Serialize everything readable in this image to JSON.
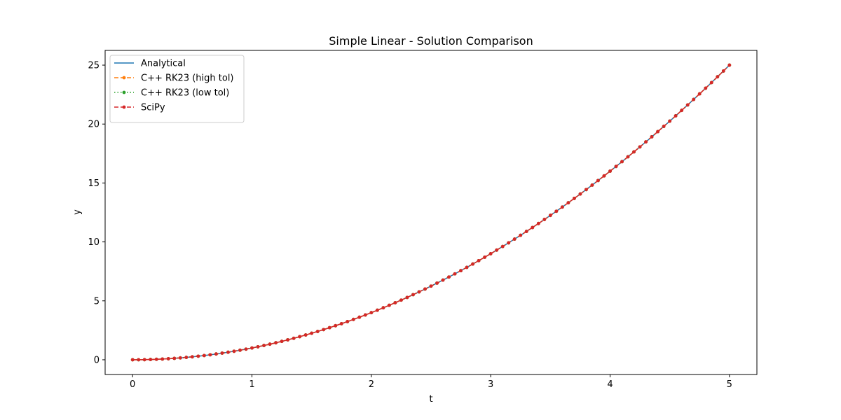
{
  "chart_data": {
    "type": "line",
    "title": "Simple Linear - Solution Comparison",
    "xlabel": "t",
    "ylabel": "y",
    "xlim": [
      -0.23,
      5.23
    ],
    "ylim": [
      -1.25,
      26.25
    ],
    "xticks": [
      0,
      1,
      2,
      3,
      4,
      5
    ],
    "yticks": [
      0,
      5,
      10,
      15,
      20,
      25
    ],
    "grid": false,
    "legend_position": "top-left",
    "function_shown": "y = t^2",
    "x": [
      0,
      0.05,
      0.1,
      0.15,
      0.2,
      0.25,
      0.3,
      0.35,
      0.4,
      0.45,
      0.5,
      0.55,
      0.6,
      0.65,
      0.7,
      0.75,
      0.8,
      0.85,
      0.9,
      0.95,
      1.0,
      1.05,
      1.1,
      1.15,
      1.2,
      1.25,
      1.3,
      1.35,
      1.4,
      1.45,
      1.5,
      1.55,
      1.6,
      1.65,
      1.7,
      1.75,
      1.8,
      1.85,
      1.9,
      1.95,
      2.0,
      2.05,
      2.1,
      2.15,
      2.2,
      2.25,
      2.3,
      2.35,
      2.4,
      2.45,
      2.5,
      2.55,
      2.6,
      2.65,
      2.7,
      2.75,
      2.8,
      2.85,
      2.9,
      2.95,
      3.0,
      3.05,
      3.1,
      3.15,
      3.2,
      3.25,
      3.3,
      3.35,
      3.4,
      3.45,
      3.5,
      3.55,
      3.6,
      3.65,
      3.7,
      3.75,
      3.8,
      3.85,
      3.9,
      3.95,
      4.0,
      4.05,
      4.1,
      4.15,
      4.2,
      4.25,
      4.3,
      4.35,
      4.4,
      4.45,
      4.5,
      4.55,
      4.6,
      4.65,
      4.7,
      4.75,
      4.8,
      4.85,
      4.9,
      4.95,
      5.0
    ],
    "series": [
      {
        "name": "Analytical",
        "color": "#1f77b4",
        "line_style": "solid",
        "marker": "none",
        "values": [
          0,
          0.0025,
          0.01,
          0.0225,
          0.04,
          0.0625,
          0.09,
          0.1225,
          0.16,
          0.2025,
          0.25,
          0.3025,
          0.36,
          0.4225,
          0.49,
          0.5625,
          0.64,
          0.7225,
          0.81,
          0.9025,
          1.0,
          1.1025,
          1.21,
          1.3225,
          1.44,
          1.5625,
          1.69,
          1.8225,
          1.96,
          2.1025,
          2.25,
          2.4025,
          2.56,
          2.7225,
          2.89,
          3.0625,
          3.24,
          3.4225,
          3.61,
          3.8025,
          4.0,
          4.2025,
          4.41,
          4.6225,
          4.84,
          5.0625,
          5.29,
          5.5225,
          5.76,
          6.0025,
          6.25,
          6.5025,
          6.76,
          7.0225,
          7.29,
          7.5625,
          7.84,
          8.1225,
          8.41,
          8.7025,
          9.0,
          9.3025,
          9.61,
          9.9225,
          10.24,
          10.5625,
          10.89,
          11.2225,
          11.56,
          11.9025,
          12.25,
          12.6025,
          12.96,
          13.3225,
          13.69,
          14.0625,
          14.44,
          14.8225,
          15.21,
          15.6025,
          16.0,
          16.4025,
          16.81,
          17.2225,
          17.64,
          18.0625,
          18.49,
          18.9225,
          19.36,
          19.8025,
          20.25,
          20.7025,
          21.16,
          21.6225,
          22.09,
          22.5625,
          23.04,
          23.5225,
          24.01,
          24.5025,
          25.0
        ]
      },
      {
        "name": "C++ RK23 (high tol)",
        "color": "#ff7f0e",
        "line_style": "dashed",
        "marker": "dot",
        "values": [
          0,
          0.0025,
          0.01,
          0.0225,
          0.04,
          0.0625,
          0.09,
          0.1225,
          0.16,
          0.2025,
          0.25,
          0.3025,
          0.36,
          0.4225,
          0.49,
          0.5625,
          0.64,
          0.7225,
          0.81,
          0.9025,
          1.0,
          1.1025,
          1.21,
          1.3225,
          1.44,
          1.5625,
          1.69,
          1.8225,
          1.96,
          2.1025,
          2.25,
          2.4025,
          2.56,
          2.7225,
          2.89,
          3.0625,
          3.24,
          3.4225,
          3.61,
          3.8025,
          4.0,
          4.2025,
          4.41,
          4.6225,
          4.84,
          5.0625,
          5.29,
          5.5225,
          5.76,
          6.0025,
          6.25,
          6.5025,
          6.76,
          7.0225,
          7.29,
          7.5625,
          7.84,
          8.1225,
          8.41,
          8.7025,
          9.0,
          9.3025,
          9.61,
          9.9225,
          10.24,
          10.5625,
          10.89,
          11.2225,
          11.56,
          11.9025,
          12.25,
          12.6025,
          12.96,
          13.3225,
          13.69,
          14.0625,
          14.44,
          14.8225,
          15.21,
          15.6025,
          16.0,
          16.4025,
          16.81,
          17.2225,
          17.64,
          18.0625,
          18.49,
          18.9225,
          19.36,
          19.8025,
          20.25,
          20.7025,
          21.16,
          21.6225,
          22.09,
          22.5625,
          23.04,
          23.5225,
          24.01,
          24.5025,
          25.0
        ]
      },
      {
        "name": "C++ RK23 (low tol)",
        "color": "#2ca02c",
        "line_style": "dotted",
        "marker": "dot",
        "values": [
          0,
          0.0025,
          0.01,
          0.0225,
          0.04,
          0.0625,
          0.09,
          0.1225,
          0.16,
          0.2025,
          0.25,
          0.3025,
          0.36,
          0.4225,
          0.49,
          0.5625,
          0.64,
          0.7225,
          0.81,
          0.9025,
          1.0,
          1.1025,
          1.21,
          1.3225,
          1.44,
          1.5625,
          1.69,
          1.8225,
          1.96,
          2.1025,
          2.25,
          2.4025,
          2.56,
          2.7225,
          2.89,
          3.0625,
          3.24,
          3.4225,
          3.61,
          3.8025,
          4.0,
          4.2025,
          4.41,
          4.6225,
          4.84,
          5.0625,
          5.29,
          5.5225,
          5.76,
          6.0025,
          6.25,
          6.5025,
          6.76,
          7.0225,
          7.29,
          7.5625,
          7.84,
          8.1225,
          8.41,
          8.7025,
          9.0,
          9.3025,
          9.61,
          9.9225,
          10.24,
          10.5625,
          10.89,
          11.2225,
          11.56,
          11.9025,
          12.25,
          12.6025,
          12.96,
          13.3225,
          13.69,
          14.0625,
          14.44,
          14.8225,
          15.21,
          15.6025,
          16.0,
          16.4025,
          16.81,
          17.2225,
          17.64,
          18.0625,
          18.49,
          18.9225,
          19.36,
          19.8025,
          20.25,
          20.7025,
          21.16,
          21.6225,
          22.09,
          22.5625,
          23.04,
          23.5225,
          24.01,
          24.5025,
          25.0
        ]
      },
      {
        "name": "SciPy",
        "color": "#d62728",
        "line_style": "dashed",
        "marker": "dot",
        "values": [
          0,
          0.0025,
          0.01,
          0.0225,
          0.04,
          0.0625,
          0.09,
          0.1225,
          0.16,
          0.2025,
          0.25,
          0.3025,
          0.36,
          0.4225,
          0.49,
          0.5625,
          0.64,
          0.7225,
          0.81,
          0.9025,
          1.0,
          1.1025,
          1.21,
          1.3225,
          1.44,
          1.5625,
          1.69,
          1.8225,
          1.96,
          2.1025,
          2.25,
          2.4025,
          2.56,
          2.7225,
          2.89,
          3.0625,
          3.24,
          3.4225,
          3.61,
          3.8025,
          4.0,
          4.2025,
          4.41,
          4.6225,
          4.84,
          5.0625,
          5.29,
          5.5225,
          5.76,
          6.0025,
          6.25,
          6.5025,
          6.76,
          7.0225,
          7.29,
          7.5625,
          7.84,
          8.1225,
          8.41,
          8.7025,
          9.0,
          9.3025,
          9.61,
          9.9225,
          10.24,
          10.5625,
          10.89,
          11.2225,
          11.56,
          11.9025,
          12.25,
          12.6025,
          12.96,
          13.3225,
          13.69,
          14.0625,
          14.44,
          14.8225,
          15.21,
          15.6025,
          16.0,
          16.4025,
          16.81,
          17.2225,
          17.64,
          18.0625,
          18.49,
          18.9225,
          19.36,
          19.8025,
          20.25,
          20.7025,
          21.16,
          21.6225,
          22.09,
          22.5625,
          23.04,
          23.5225,
          24.01,
          24.5025,
          25.0
        ]
      }
    ]
  }
}
